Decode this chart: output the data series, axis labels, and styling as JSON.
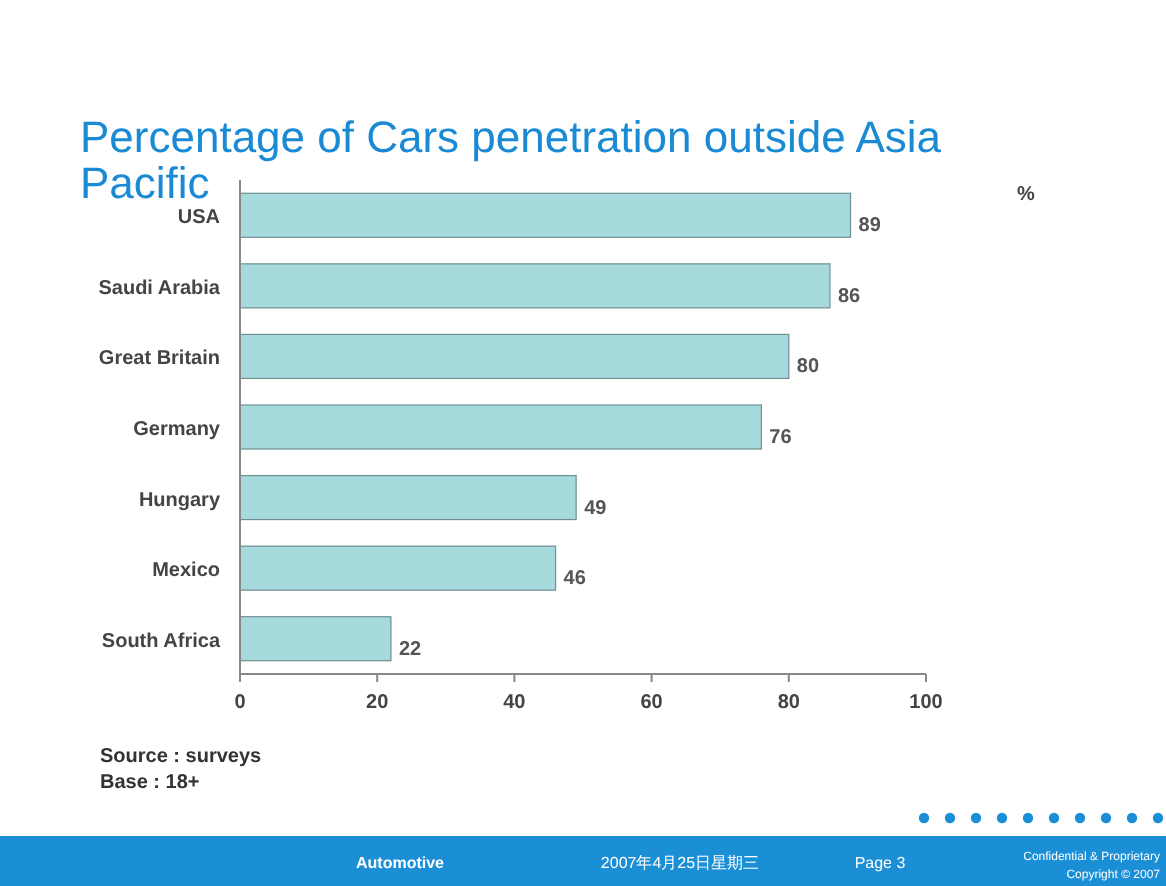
{
  "chart_data": {
    "type": "bar",
    "orientation": "horizontal",
    "title": "Percentage of Cars penetration outside Asia Pacific",
    "xlabel": "%",
    "categories": [
      "USA",
      "Saudi Arabia",
      "Great Britain",
      "Germany",
      "Hungary",
      "Mexico",
      "South Africa"
    ],
    "values": [
      89,
      86,
      80,
      76,
      49,
      46,
      22
    ],
    "color": "#a6dadd",
    "xlim": [
      0,
      100
    ],
    "xticks": [
      0,
      20,
      40,
      60,
      80,
      100
    ],
    "data_labels": true,
    "annotations": [
      "Source : surveys",
      "Base : 18+",
      "Automotive",
      "2007年4月25日星期三",
      "Page 3",
      "Confidential & Proprietary",
      "Copyright © 2007"
    ]
  }
}
